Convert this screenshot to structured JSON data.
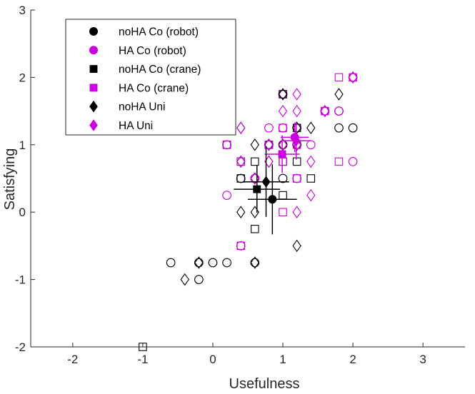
{
  "chart_data": {
    "type": "scatter",
    "title": "",
    "xlabel": "Usefulness",
    "ylabel": "Satisfying",
    "xlim": [
      -2.6,
      3.6
    ],
    "ylim": [
      -2,
      3
    ],
    "xticks": [
      -2,
      -1,
      0,
      1,
      2,
      3
    ],
    "yticks": [
      -2,
      -1,
      0,
      1,
      2,
      3
    ],
    "xtick_labels": [
      "-2",
      "-1",
      "0",
      "1",
      "2",
      "3"
    ],
    "ytick_labels": [
      "-2",
      "-1",
      "0",
      "1",
      "2",
      "3"
    ],
    "grid": false,
    "legend_position": "top-left",
    "colors": {
      "noHA": "#000000",
      "HA": "#cc00e0"
    },
    "series": [
      {
        "name": "noHA Co (robot)",
        "marker": "circle",
        "color": "#000000",
        "points": [
          [
            -0.6,
            -0.75
          ],
          [
            -0.2,
            -0.75
          ],
          [
            -0.2,
            -1.0
          ],
          [
            0.0,
            -0.75
          ],
          [
            0.2,
            -0.75
          ],
          [
            0.6,
            -0.75
          ],
          [
            0.4,
            0.5
          ],
          [
            0.6,
            0.5
          ],
          [
            0.8,
            1.0
          ],
          [
            1.0,
            0.5
          ],
          [
            1.0,
            1.0
          ],
          [
            1.2,
            1.0
          ],
          [
            1.0,
            1.75
          ],
          [
            1.2,
            1.25
          ],
          [
            1.6,
            1.5
          ],
          [
            1.8,
            1.5
          ],
          [
            1.8,
            1.25
          ],
          [
            2.0,
            1.25
          ]
        ],
        "mean": [
          0.85,
          0.19
        ],
        "err_x": 0.35,
        "err_y": 0.52
      },
      {
        "name": "HA Co (robot)",
        "marker": "circle",
        "color": "#cc00e0",
        "points": [
          [
            0.2,
            0.25
          ],
          [
            0.6,
            0.5
          ],
          [
            0.8,
            1.25
          ],
          [
            1.0,
            1.25
          ],
          [
            1.2,
            1.25
          ],
          [
            1.2,
            0.5
          ],
          [
            0.4,
            -0.5
          ],
          [
            1.4,
            1.0
          ],
          [
            1.6,
            1.5
          ],
          [
            1.8,
            1.5
          ],
          [
            2.0,
            2.0
          ],
          [
            2.0,
            0.75
          ],
          [
            0.2,
            1.0
          ],
          [
            1.0,
            1.75
          ]
        ],
        "mean": [
          1.17,
          1.11
        ],
        "err_x": 0.2,
        "err_y": 0.22
      },
      {
        "name": "noHA Co (crane)",
        "marker": "square",
        "color": "#000000",
        "points": [
          [
            -1.0,
            -2.0
          ],
          [
            0.6,
            -0.25
          ],
          [
            0.6,
            0.75
          ],
          [
            0.8,
            1.0
          ],
          [
            1.0,
            0.25
          ],
          [
            1.0,
            0.75
          ],
          [
            1.2,
            0.75
          ],
          [
            1.4,
            0.5
          ],
          [
            1.2,
            1.25
          ],
          [
            1.0,
            1.75
          ],
          [
            0.2,
            1.0
          ],
          [
            0.4,
            0.75
          ],
          [
            0.4,
            0.5
          ]
        ],
        "mean": [
          0.63,
          0.34
        ],
        "err_x": 0.33,
        "err_y": 0.35
      },
      {
        "name": "HA Co (crane)",
        "marker": "square",
        "color": "#cc00e0",
        "points": [
          [
            0.8,
            1.0
          ],
          [
            1.0,
            0.75
          ],
          [
            1.0,
            1.25
          ],
          [
            1.2,
            1.0
          ],
          [
            1.2,
            0.5
          ],
          [
            1.6,
            1.5
          ],
          [
            1.8,
            2.0
          ],
          [
            1.8,
            0.75
          ],
          [
            2.0,
            2.0
          ],
          [
            0.2,
            1.0
          ],
          [
            0.4,
            0.75
          ],
          [
            1.0,
            0.0
          ],
          [
            0.4,
            -0.5
          ]
        ],
        "mean": [
          0.99,
          0.86
        ],
        "err_x": 0.25,
        "err_y": 0.28
      },
      {
        "name": "noHA Uni",
        "marker": "diamond",
        "color": "#000000",
        "points": [
          [
            -0.4,
            -1.0
          ],
          [
            -0.2,
            -0.75
          ],
          [
            0.4,
            0.0
          ],
          [
            0.6,
            0.0
          ],
          [
            0.6,
            0.5
          ],
          [
            0.6,
            1.0
          ],
          [
            0.8,
            0.75
          ],
          [
            0.8,
            1.0
          ],
          [
            1.0,
            1.0
          ],
          [
            1.0,
            1.75
          ],
          [
            1.2,
            1.0
          ],
          [
            1.2,
            1.25
          ],
          [
            1.2,
            -0.5
          ],
          [
            1.4,
            1.25
          ],
          [
            1.8,
            1.75
          ],
          [
            0.4,
            1.25
          ],
          [
            0.4,
            0.75
          ],
          [
            0.6,
            -0.75
          ]
        ],
        "mean": [
          0.76,
          0.45
        ],
        "err_x": 0.33,
        "err_y": 0.52
      },
      {
        "name": "HA Uni",
        "marker": "diamond",
        "color": "#cc00e0",
        "points": [
          [
            0.4,
            0.75
          ],
          [
            0.4,
            1.25
          ],
          [
            0.6,
            0.5
          ],
          [
            0.8,
            0.75
          ],
          [
            0.8,
            1.0
          ],
          [
            1.0,
            1.0
          ],
          [
            1.0,
            1.5
          ],
          [
            1.2,
            1.5
          ],
          [
            1.2,
            1.75
          ],
          [
            1.2,
            0.0
          ],
          [
            1.4,
            0.25
          ],
          [
            1.4,
            0.75
          ],
          [
            1.6,
            1.5
          ],
          [
            2.0,
            2.0
          ],
          [
            1.2,
            1.0
          ]
        ],
        "mean": [
          1.19,
          1.06
        ],
        "err_x": 0.21,
        "err_y": 0.28
      }
    ]
  }
}
